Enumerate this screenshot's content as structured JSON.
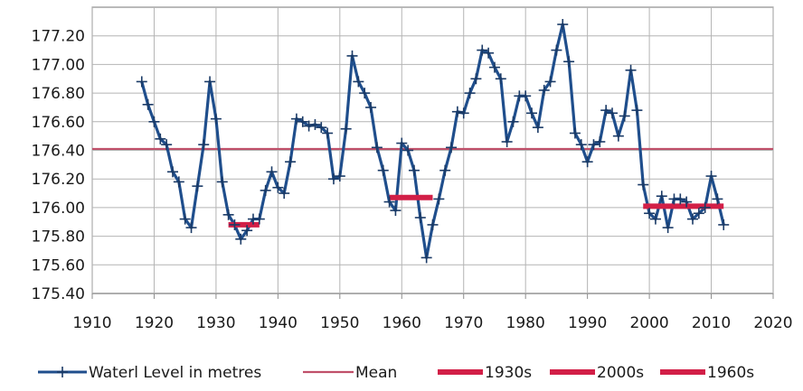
{
  "chart_data": {
    "type": "line",
    "xlim": [
      1910,
      2020
    ],
    "ylim": [
      175.4,
      177.4
    ],
    "x_ticks": [
      "1910",
      "1920",
      "1930",
      "1940",
      "1950",
      "1960",
      "1970",
      "1980",
      "1990",
      "2000",
      "2010",
      "2020"
    ],
    "y_ticks": [
      "175.40",
      "175.60",
      "175.80",
      "176.00",
      "176.20",
      "176.40",
      "176.60",
      "176.80",
      "177.00",
      "177.20"
    ],
    "grid": true,
    "legend_position": "bottom",
    "series": [
      {
        "name": "Waterl Level in metres",
        "color": "#1f4e8c",
        "marker": "plus",
        "points": [
          [
            1918,
            176.88
          ],
          [
            1919,
            176.72
          ],
          [
            1920,
            176.6
          ],
          [
            1921,
            176.48
          ],
          [
            1922,
            176.44
          ],
          [
            1923,
            176.25
          ],
          [
            1924,
            176.18
          ],
          [
            1925,
            175.92
          ],
          [
            1926,
            175.86
          ],
          [
            1927,
            176.15
          ],
          [
            1928,
            176.44
          ],
          [
            1929,
            176.88
          ],
          [
            1930,
            176.62
          ],
          [
            1931,
            176.18
          ],
          [
            1932,
            175.95
          ],
          [
            1933,
            175.88
          ],
          [
            1934,
            175.78
          ],
          [
            1935,
            175.84
          ],
          [
            1936,
            175.92
          ],
          [
            1937,
            175.92
          ],
          [
            1938,
            176.12
          ],
          [
            1939,
            176.25
          ],
          [
            1940,
            176.14
          ],
          [
            1941,
            176.1
          ],
          [
            1942,
            176.32
          ],
          [
            1943,
            176.62
          ],
          [
            1944,
            176.6
          ],
          [
            1945,
            176.57
          ],
          [
            1946,
            176.58
          ],
          [
            1947,
            176.56
          ],
          [
            1948,
            176.52
          ],
          [
            1949,
            176.2
          ],
          [
            1950,
            176.22
          ],
          [
            1951,
            176.55
          ],
          [
            1952,
            177.06
          ],
          [
            1953,
            176.88
          ],
          [
            1954,
            176.8
          ],
          [
            1955,
            176.7
          ],
          [
            1956,
            176.42
          ],
          [
            1957,
            176.26
          ],
          [
            1958,
            176.04
          ],
          [
            1959,
            175.98
          ],
          [
            1960,
            176.45
          ],
          [
            1961,
            176.4
          ],
          [
            1962,
            176.26
          ],
          [
            1963,
            175.93
          ],
          [
            1964,
            175.65
          ],
          [
            1965,
            175.88
          ],
          [
            1966,
            176.06
          ],
          [
            1967,
            176.26
          ],
          [
            1968,
            176.42
          ],
          [
            1969,
            176.67
          ],
          [
            1970,
            176.66
          ],
          [
            1971,
            176.8
          ],
          [
            1972,
            176.9
          ],
          [
            1973,
            177.1
          ],
          [
            1974,
            177.08
          ],
          [
            1975,
            176.98
          ],
          [
            1976,
            176.9
          ],
          [
            1977,
            176.46
          ],
          [
            1978,
            176.6
          ],
          [
            1979,
            176.78
          ],
          [
            1980,
            176.78
          ],
          [
            1981,
            176.66
          ],
          [
            1982,
            176.56
          ],
          [
            1983,
            176.82
          ],
          [
            1984,
            176.88
          ],
          [
            1985,
            177.1
          ],
          [
            1986,
            177.28
          ],
          [
            1987,
            177.02
          ],
          [
            1988,
            176.52
          ],
          [
            1989,
            176.44
          ],
          [
            1990,
            176.32
          ],
          [
            1991,
            176.44
          ],
          [
            1992,
            176.46
          ],
          [
            1993,
            176.68
          ],
          [
            1994,
            176.66
          ],
          [
            1995,
            176.5
          ],
          [
            1996,
            176.64
          ],
          [
            1997,
            176.96
          ],
          [
            1998,
            176.68
          ],
          [
            1999,
            176.16
          ],
          [
            2000,
            175.96
          ],
          [
            2001,
            175.92
          ],
          [
            2002,
            176.08
          ],
          [
            2003,
            175.86
          ],
          [
            2004,
            176.06
          ],
          [
            2005,
            176.06
          ],
          [
            2006,
            176.04
          ],
          [
            2007,
            175.92
          ],
          [
            2008,
            175.96
          ],
          [
            2009,
            176.0
          ],
          [
            2010,
            176.22
          ],
          [
            2011,
            176.06
          ],
          [
            2012,
            175.88
          ]
        ]
      },
      {
        "name": "Mean",
        "color": "#c0506a",
        "kind": "hline",
        "y": 176.41,
        "x": [
          1910,
          2020
        ]
      },
      {
        "name": "1930s",
        "color": "#d21f47",
        "kind": "segment",
        "y": 175.88,
        "x": [
          1932,
          1937
        ]
      },
      {
        "name": "2000s",
        "color": "#d21f47",
        "kind": "segment",
        "y": 176.01,
        "x": [
          1999,
          2012
        ]
      },
      {
        "name": "1960s",
        "color": "#d21f47",
        "kind": "segment",
        "y": 176.07,
        "x": [
          1958,
          1965
        ]
      }
    ]
  }
}
